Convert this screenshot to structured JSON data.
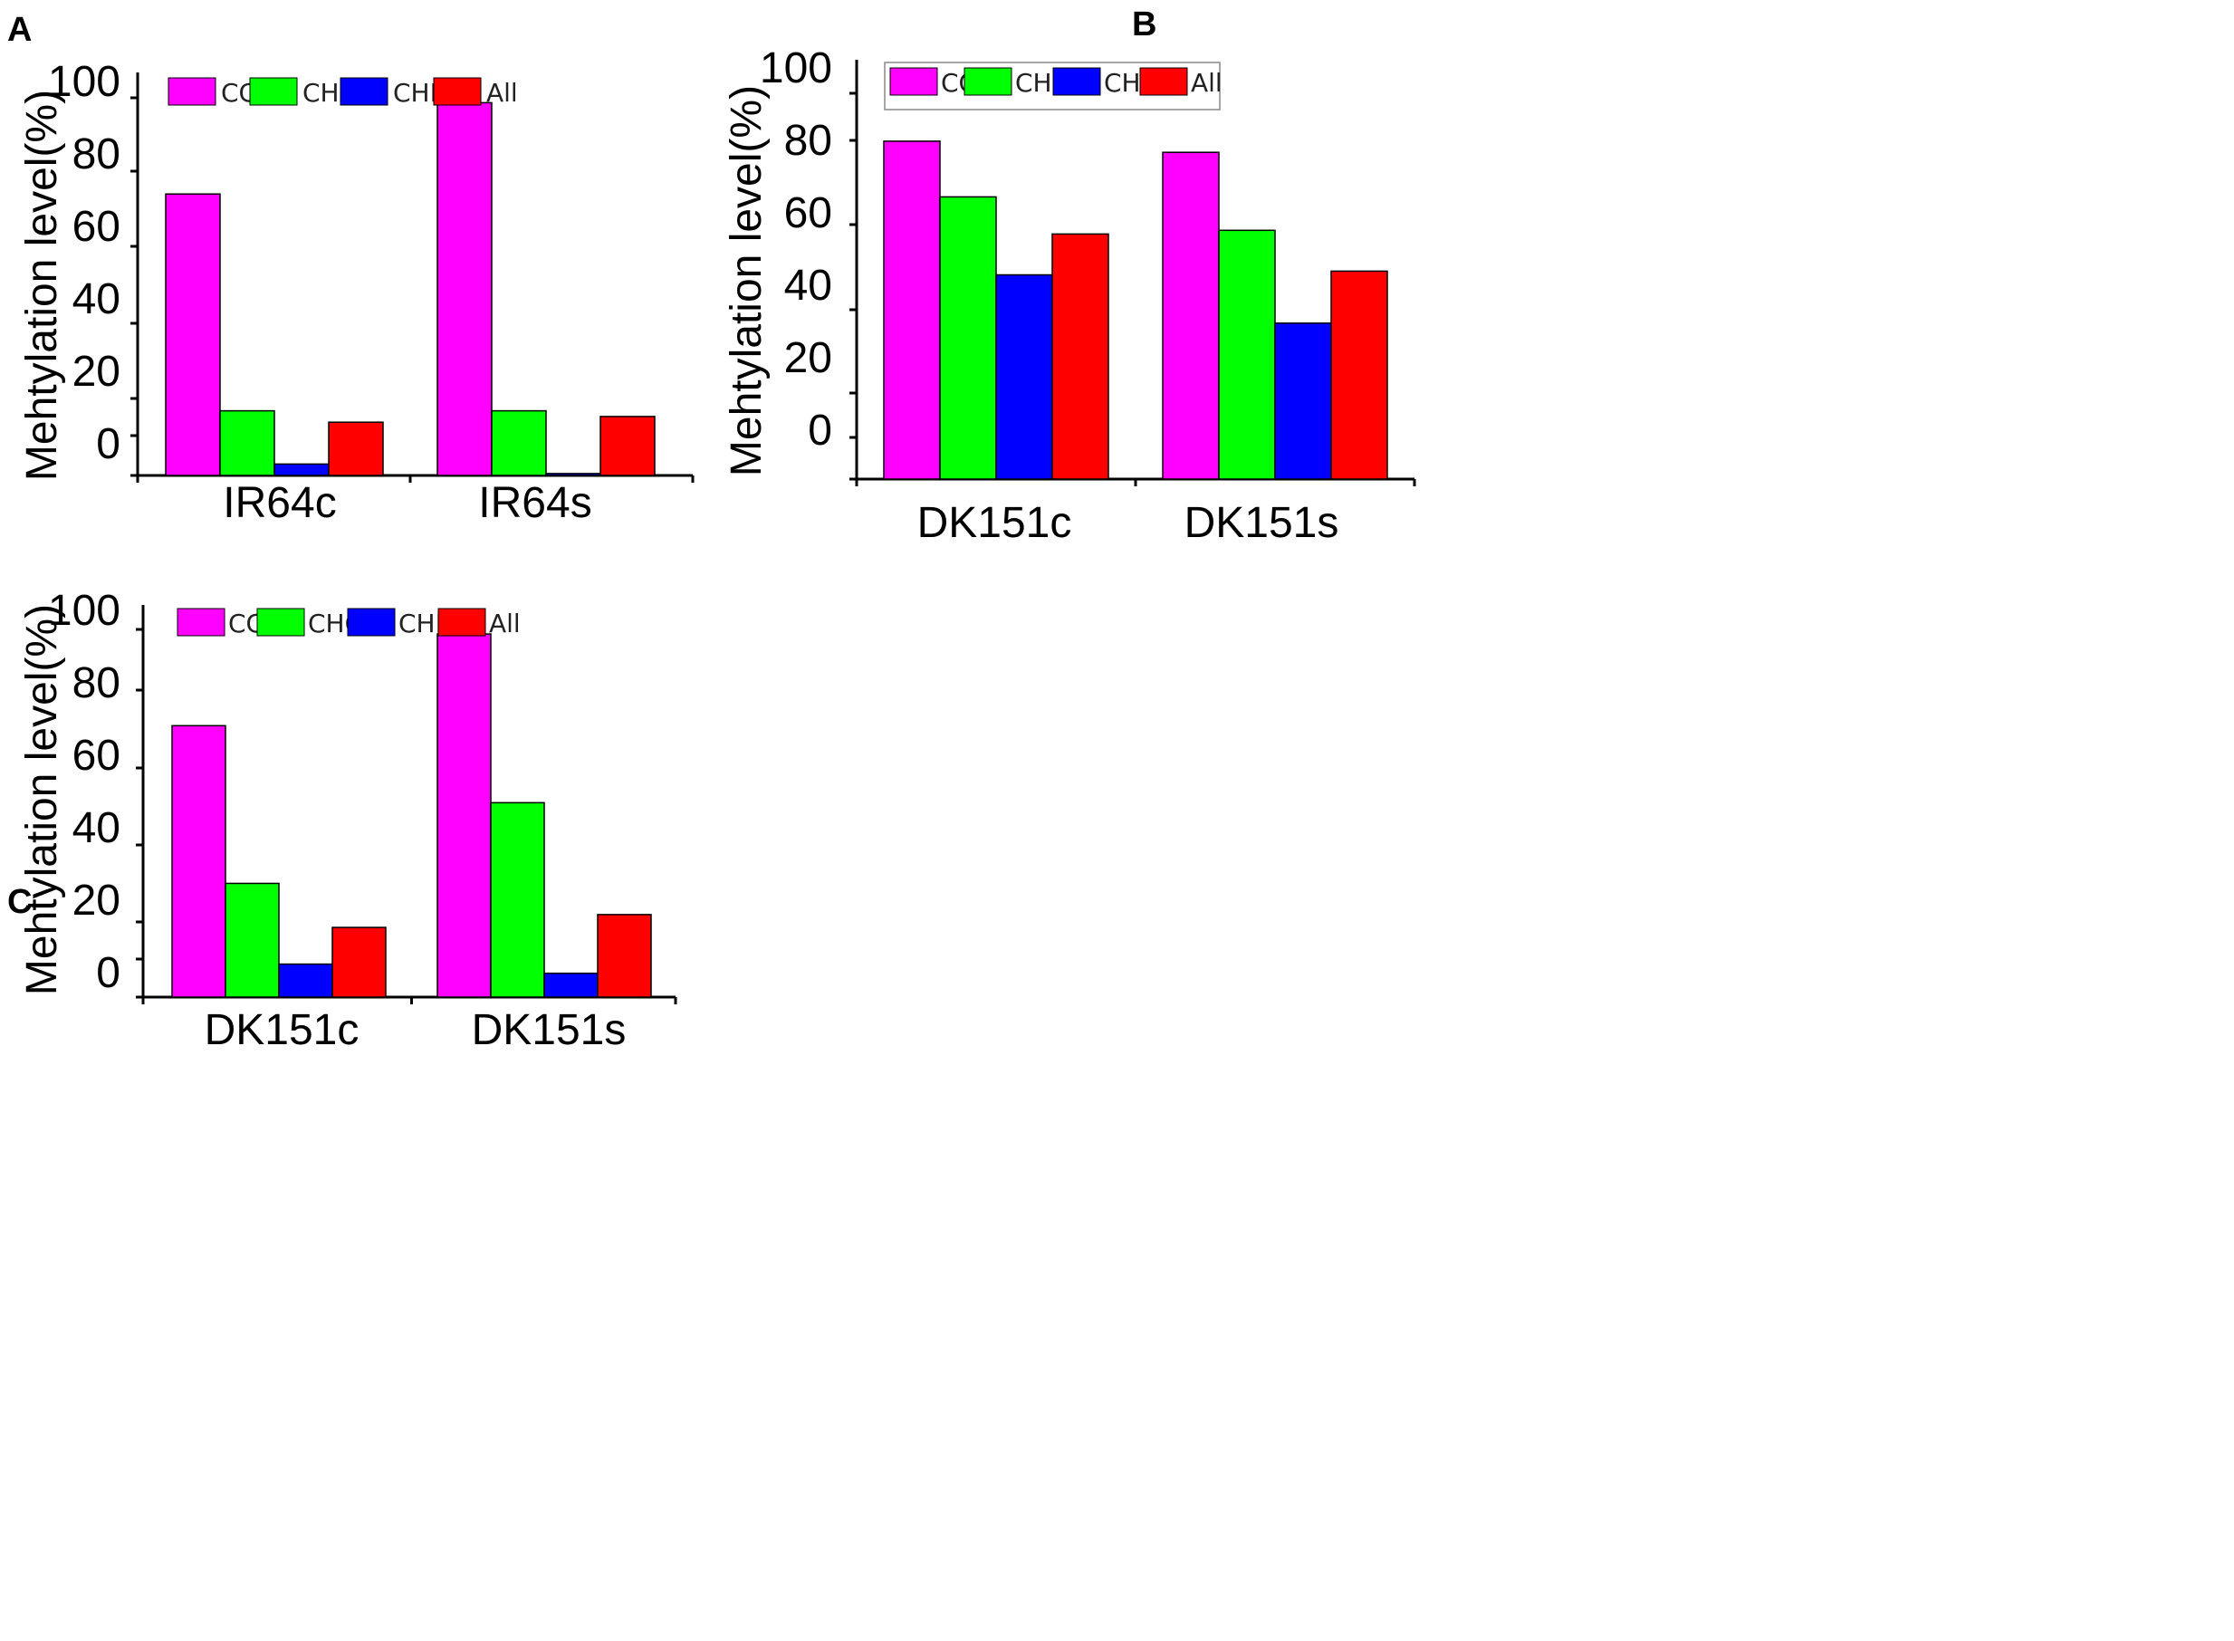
{
  "colors": {
    "CG": "#ff00ff",
    "CHG": "#00ff00",
    "CHH": "#0000ff",
    "All": "#ff0000"
  },
  "chart_data": [
    {
      "panel": "A",
      "type": "bar",
      "categories": [
        "IR64c",
        "IR64s"
      ],
      "series": [
        {
          "name": "CG",
          "values": [
            74,
            98
          ]
        },
        {
          "name": "CHG",
          "values": [
            17,
            17
          ]
        },
        {
          "name": "CHH",
          "values": [
            3,
            0.5
          ]
        },
        {
          "name": "All",
          "values": [
            14,
            15.5
          ]
        }
      ],
      "ylabel": "Mehtylation level(%)",
      "yticks": [
        "100",
        "80",
        "60",
        "40",
        "20",
        "0"
      ],
      "legend": [
        "CG",
        "CHG",
        "CHH",
        "All"
      ],
      "legend_position": "top"
    },
    {
      "panel": "B",
      "type": "bar",
      "categories": [
        "DK151c",
        "DK151s"
      ],
      "series": [
        {
          "name": "CG",
          "values": [
            91,
            88
          ]
        },
        {
          "name": "CHG",
          "values": [
            76,
            67
          ]
        },
        {
          "name": "CHH",
          "values": [
            55,
            42
          ]
        },
        {
          "name": "All",
          "values": [
            66,
            56
          ]
        }
      ],
      "ylabel": "Mehtylation level(%)",
      "yticks": [
        "100",
        "80",
        "60",
        "40",
        "20",
        "0"
      ],
      "legend": [
        "CG",
        "CHG",
        "CHH",
        "All"
      ],
      "legend_position": "top"
    },
    {
      "panel": "C",
      "type": "bar",
      "categories": [
        "DK151c",
        "DK151s"
      ],
      "series": [
        {
          "name": "CG",
          "values": [
            74,
            99
          ]
        },
        {
          "name": "CHG",
          "values": [
            31,
            53
          ]
        },
        {
          "name": "CHH",
          "values": [
            9,
            6.5
          ]
        },
        {
          "name": "All",
          "values": [
            19,
            22.5
          ]
        }
      ],
      "ylabel": "Mehtylation level(%)",
      "yticks": [
        "100",
        "80",
        "60",
        "40",
        "20",
        "0"
      ],
      "legend": [
        "CG",
        "CHG",
        "CHH",
        "All"
      ],
      "legend_position": "top"
    }
  ]
}
